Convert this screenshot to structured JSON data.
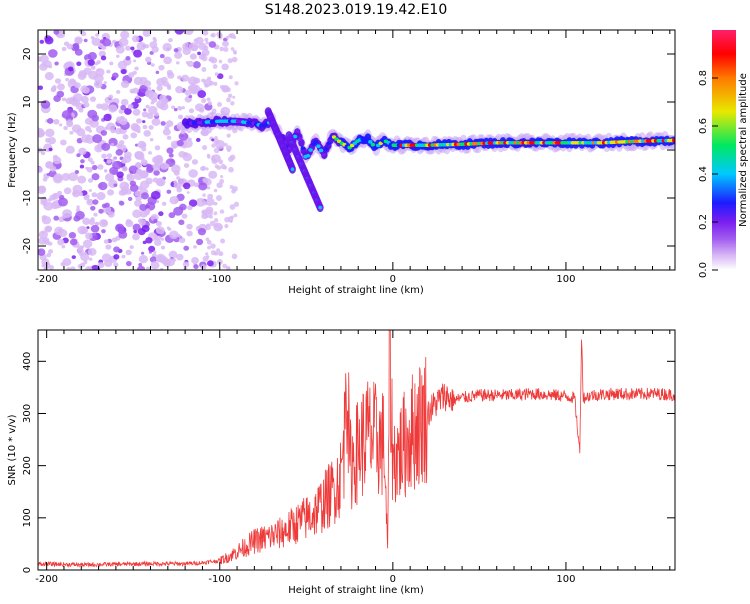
{
  "figure_title": "S148.2023.019.19.42.E10",
  "colors": {
    "snr_line": "#ef3a3a",
    "axis": "#000000",
    "spectrogram_background": "#ffffff",
    "colormap": [
      "#ffffff",
      "#d8b8f5",
      "#a15cf0",
      "#7a1ef0",
      "#1c1cff",
      "#00c8ff",
      "#00e860",
      "#e8e800",
      "#ff7a00",
      "#ff0000",
      "#ff1f6a"
    ]
  },
  "chart_data": [
    {
      "type": "heatmap",
      "xlabel": "Height of straight line (km)",
      "ylabel": "Frequency (Hz)",
      "xlim": [
        -205,
        163
      ],
      "ylim": [
        -25,
        25
      ],
      "x_ticks": [
        -200,
        -100,
        0,
        100
      ],
      "y_ticks": [
        -20,
        -10,
        0,
        10,
        20
      ],
      "colorbar": {
        "label": "Normalized spectral amplitude",
        "range": [
          0.0,
          1.0
        ],
        "ticks": [
          0.0,
          0.2,
          0.4,
          0.6,
          0.8
        ]
      },
      "ridge": {
        "x": [
          -120,
          -100,
          -90,
          -80,
          -75,
          -70,
          -65,
          -60,
          -55,
          -50,
          -45,
          -40,
          -35,
          -30,
          -25,
          -20,
          -15,
          -10,
          -5,
          0,
          10,
          20,
          40,
          60,
          80,
          100,
          120,
          140,
          163
        ],
        "frequency": [
          5.5,
          6.0,
          6.0,
          5.5,
          5.0,
          6.0,
          3.0,
          0.0,
          4.0,
          -2.0,
          2.0,
          -1.0,
          3.0,
          1.5,
          0.5,
          2.0,
          2.5,
          0.5,
          2.0,
          1.0,
          1.0,
          1.0,
          1.2,
          1.5,
          1.5,
          1.5,
          1.5,
          1.8,
          2.0
        ]
      }
    },
    {
      "type": "line",
      "xlabel": "Height of straight line (km)",
      "ylabel": "SNR (10 * v/v)",
      "xlim": [
        -205,
        163
      ],
      "ylim": [
        0,
        460
      ],
      "x_ticks": [
        -200,
        -100,
        0,
        100
      ],
      "y_ticks": [
        0,
        100,
        200,
        300,
        400
      ],
      "series": [
        {
          "x": [
            -205,
            -180,
            -160,
            -140,
            -120,
            -110,
            -100,
            -95,
            -90,
            -85,
            -80,
            -75,
            -70,
            -65,
            -60,
            -55,
            -50,
            -45,
            -40,
            -35,
            -30,
            -28,
            -27,
            -25,
            -20,
            -15,
            -10,
            -5,
            -3,
            -2,
            0,
            5,
            10,
            15,
            20,
            25,
            30,
            35,
            40,
            50,
            60,
            70,
            80,
            90,
            100,
            105,
            108,
            109,
            110,
            115,
            120,
            130,
            140,
            150,
            163
          ],
          "y": [
            12,
            10,
            11,
            12,
            12,
            14,
            18,
            25,
            35,
            45,
            55,
            60,
            65,
            70,
            80,
            90,
            100,
            110,
            130,
            150,
            180,
            250,
            455,
            200,
            230,
            260,
            250,
            240,
            30,
            435,
            210,
            230,
            260,
            280,
            300,
            320,
            335,
            325,
            330,
            335,
            335,
            335,
            338,
            336,
            333,
            330,
            225,
            450,
            330,
            335,
            336,
            338,
            337,
            338,
            336
          ]
        }
      ]
    }
  ]
}
